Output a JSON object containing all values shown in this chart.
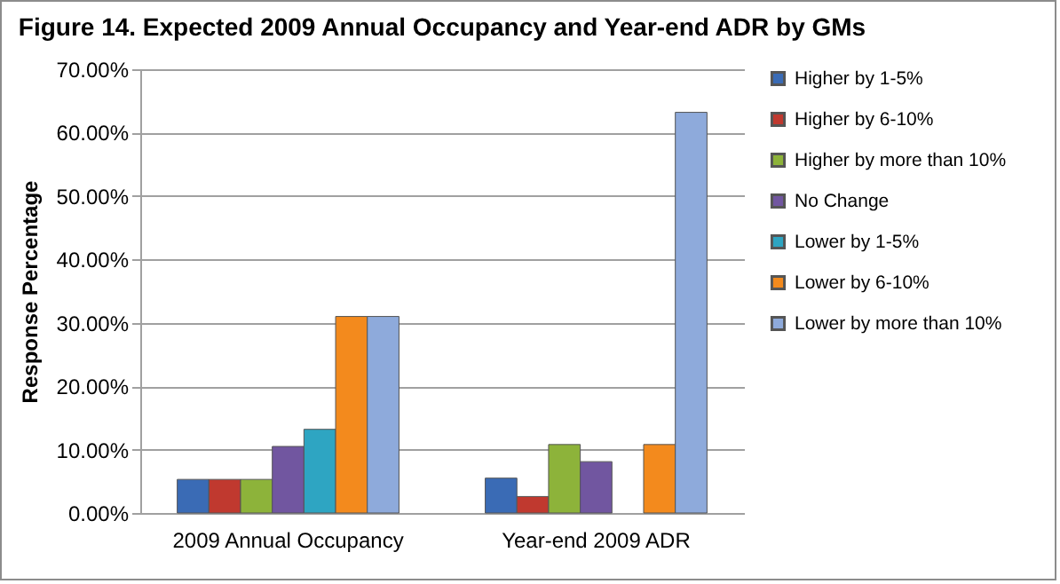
{
  "chart_data": {
    "type": "bar",
    "title": "Figure 14. Expected 2009 Annual Occupancy and Year-end ADR by GMs",
    "ylabel": "Response Percentage",
    "categories": [
      "2009 Annual Occupancy",
      "Year-end 2009 ADR"
    ],
    "series": [
      {
        "name": "Higher by 1-5%",
        "color": "#3a6bb5",
        "values": [
          5.3,
          5.5
        ]
      },
      {
        "name": "Higher by 6-10%",
        "color": "#c0392f",
        "values": [
          5.3,
          2.6
        ]
      },
      {
        "name": "Higher by more than 10%",
        "color": "#8db33a",
        "values": [
          5.3,
          10.8
        ]
      },
      {
        "name": "No Change",
        "color": "#7156a0",
        "values": [
          10.5,
          8.1
        ]
      },
      {
        "name": "Lower by 1-5%",
        "color": "#2ea5c2",
        "values": [
          13.2,
          null
        ]
      },
      {
        "name": "Lower by 6-10%",
        "color": "#f38a1d",
        "values": [
          31,
          10.8
        ]
      },
      {
        "name": "Lower by more than 10%",
        "color": "#8eaadb",
        "values": [
          31,
          63.2
        ]
      }
    ],
    "ylim": [
      0,
      70
    ],
    "yticks": [
      {
        "value": 0,
        "label": "0.00%"
      },
      {
        "value": 10,
        "label": "10.00%"
      },
      {
        "value": 20,
        "label": "20.00%"
      },
      {
        "value": 30,
        "label": "30.00%"
      },
      {
        "value": 40,
        "label": "40.00%"
      },
      {
        "value": 50,
        "label": "50.00%"
      },
      {
        "value": 60,
        "label": "60.00%"
      },
      {
        "value": 70,
        "label": "70.00%"
      }
    ],
    "grid": "y",
    "legend": "right"
  }
}
